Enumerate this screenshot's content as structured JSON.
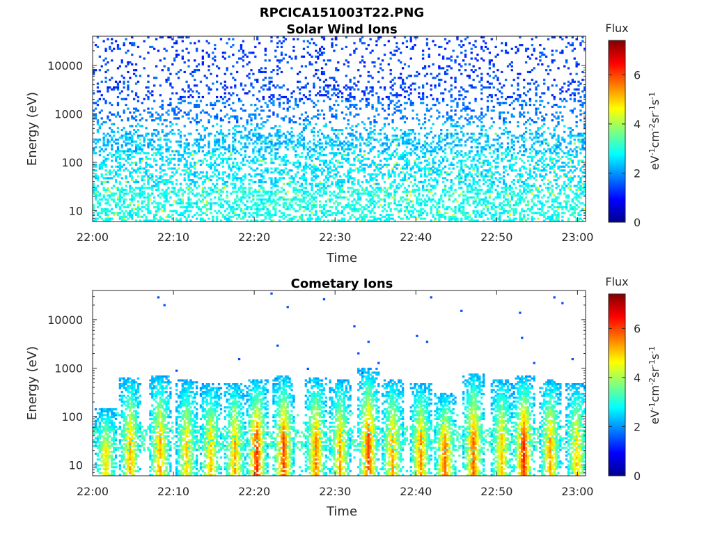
{
  "figure": {
    "filename_title": "RPCICA151003T22.PNG"
  },
  "colormap": [
    "#00008f",
    "#0000ff",
    "#0080ff",
    "#00ffff",
    "#80ff80",
    "#ffff00",
    "#ff8000",
    "#ff0000",
    "#800000"
  ],
  "chart_data": [
    {
      "type": "heatmap",
      "title": "Solar Wind Ions",
      "xlabel": "Time",
      "ylabel": "Energy (eV)",
      "x_ticks": [
        "22:00",
        "22:10",
        "22:20",
        "22:30",
        "22:40",
        "22:50",
        "23:00"
      ],
      "y_ticks": [
        "10",
        "100",
        "1000",
        "10000"
      ],
      "y_scale": "log",
      "ylim": [
        6,
        40000
      ],
      "xlim_minutes": [
        0,
        61
      ],
      "colorbar": {
        "title": "Flux",
        "label": "eV-1cm-2sr-1s-1",
        "ticks": [
          "0",
          "2",
          "4",
          "6"
        ],
        "range": [
          0,
          7.4
        ]
      },
      "bursts": [],
      "description_values": {
        "background_flux_high_energy": 1.5,
        "background_flux_low_energy": 2.8
      }
    },
    {
      "type": "heatmap",
      "title": "Cometary Ions",
      "xlabel": "Time",
      "ylabel": "Energy (eV)",
      "x_ticks": [
        "22:00",
        "22:10",
        "22:20",
        "22:30",
        "22:40",
        "22:50",
        "23:00"
      ],
      "y_ticks": [
        "10",
        "100",
        "1000",
        "10000"
      ],
      "y_scale": "log",
      "ylim": [
        6,
        40000
      ],
      "xlim_minutes": [
        0,
        61
      ],
      "colorbar": {
        "title": "Flux",
        "label": "eV-1cm-2sr-1s-1",
        "ticks": [
          "0",
          "2",
          "4",
          "6"
        ],
        "range": [
          0,
          7.4
        ]
      },
      "bursts": [
        {
          "t": 1.5,
          "top": 150,
          "peak": 4.8
        },
        {
          "t": 4.5,
          "top": 650,
          "peak": 5.2
        },
        {
          "t": 8.2,
          "top": 700,
          "peak": 5.3
        },
        {
          "t": 11.5,
          "top": 600,
          "peak": 4.9
        },
        {
          "t": 14.5,
          "top": 500,
          "peak": 5.0
        },
        {
          "t": 17.5,
          "top": 500,
          "peak": 5.3
        },
        {
          "t": 20.2,
          "top": 600,
          "peak": 6.2
        },
        {
          "t": 23.5,
          "top": 700,
          "peak": 6.0
        },
        {
          "t": 27.5,
          "top": 650,
          "peak": 5.6
        },
        {
          "t": 30.5,
          "top": 600,
          "peak": 5.2
        },
        {
          "t": 34.0,
          "top": 1000,
          "peak": 6.0
        },
        {
          "t": 37.0,
          "top": 600,
          "peak": 5.3
        },
        {
          "t": 40.5,
          "top": 500,
          "peak": 5.5
        },
        {
          "t": 43.5,
          "top": 300,
          "peak": 5.8
        },
        {
          "t": 47.0,
          "top": 800,
          "peak": 5.8
        },
        {
          "t": 50.5,
          "top": 600,
          "peak": 5.0
        },
        {
          "t": 53.2,
          "top": 700,
          "peak": 6.3
        },
        {
          "t": 56.5,
          "top": 600,
          "peak": 5.3
        },
        {
          "t": 59.8,
          "top": 500,
          "peak": 5.0
        }
      ]
    }
  ]
}
